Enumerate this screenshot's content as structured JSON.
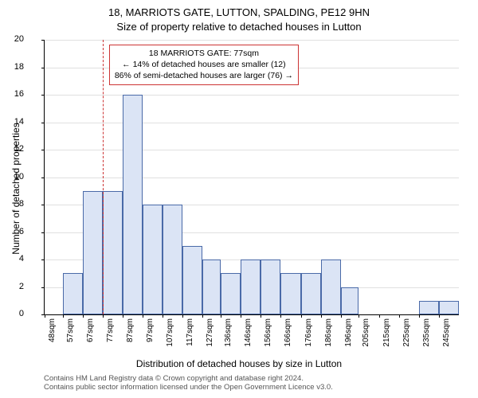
{
  "title_main": "18, MARRIOTS GATE, LUTTON, SPALDING, PE12 9HN",
  "title_sub": "Size of property relative to detached houses in Lutton",
  "ylabel": "Number of detached properties",
  "xlabel": "Distribution of detached houses by size in Lutton",
  "chart": {
    "type": "histogram",
    "ylim": [
      0,
      20
    ],
    "ytick_step": 2,
    "x_start": 48,
    "x_end": 255,
    "x_tick_start": 48,
    "x_tick_step_minor": 1,
    "x_labels": [
      48,
      57,
      67,
      77,
      87,
      97,
      107,
      117,
      127,
      136,
      146,
      156,
      166,
      176,
      186,
      196,
      205,
      215,
      225,
      235,
      245
    ],
    "x_label_suffix": "sqm",
    "bar_color": "#dbe4f5",
    "bar_border": "#4a6aa8",
    "grid_color": "#e0e0e0",
    "background_color": "#ffffff",
    "bars": [
      {
        "x": 48,
        "w": 10,
        "h": 0
      },
      {
        "x": 57,
        "w": 10,
        "h": 3
      },
      {
        "x": 67,
        "w": 10,
        "h": 9
      },
      {
        "x": 77,
        "w": 10,
        "h": 9
      },
      {
        "x": 87,
        "w": 10,
        "h": 16
      },
      {
        "x": 97,
        "w": 10,
        "h": 8
      },
      {
        "x": 107,
        "w": 10,
        "h": 8
      },
      {
        "x": 117,
        "w": 10,
        "h": 5
      },
      {
        "x": 127,
        "w": 9,
        "h": 4
      },
      {
        "x": 136,
        "w": 10,
        "h": 3
      },
      {
        "x": 146,
        "w": 10,
        "h": 4
      },
      {
        "x": 156,
        "w": 10,
        "h": 4
      },
      {
        "x": 166,
        "w": 10,
        "h": 3
      },
      {
        "x": 176,
        "w": 10,
        "h": 3
      },
      {
        "x": 186,
        "w": 10,
        "h": 4
      },
      {
        "x": 196,
        "w": 9,
        "h": 2
      },
      {
        "x": 205,
        "w": 10,
        "h": 0
      },
      {
        "x": 215,
        "w": 10,
        "h": 0
      },
      {
        "x": 225,
        "w": 10,
        "h": 0
      },
      {
        "x": 235,
        "w": 10,
        "h": 1
      },
      {
        "x": 245,
        "w": 10,
        "h": 1
      }
    ],
    "reference_line_x": 77,
    "reference_line_color": "#cc3333"
  },
  "annotation": {
    "line1": "18 MARRIOTS GATE: 77sqm",
    "line2": "← 14% of detached houses are smaller (12)",
    "line3": "86% of semi-detached houses are larger (76) →",
    "border_color": "#cc3333"
  },
  "footer": {
    "line1": "Contains HM Land Registry data © Crown copyright and database right 2024.",
    "line2": "Contains public sector information licensed under the Open Government Licence v3.0."
  }
}
